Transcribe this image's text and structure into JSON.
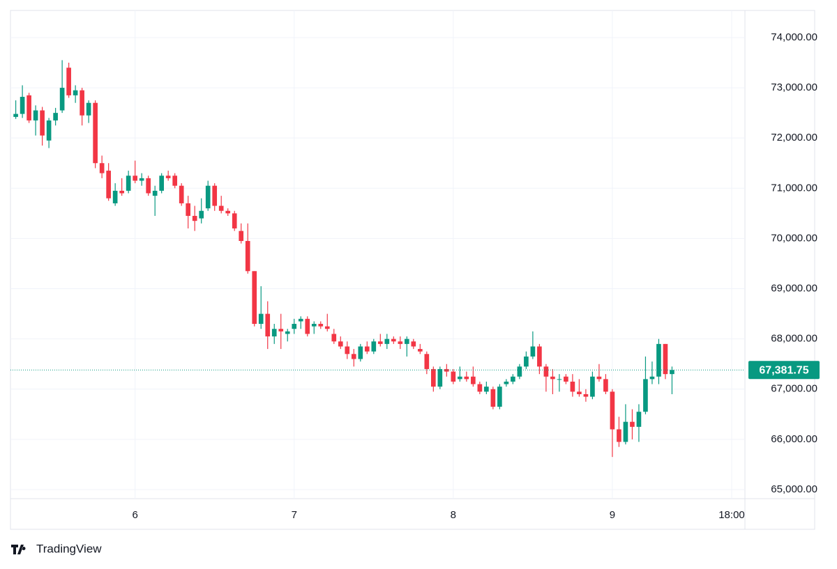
{
  "chart_data": {
    "type": "candlestick",
    "x": [
      6,
      7,
      8,
      9,
      10,
      11,
      12,
      13,
      14,
      15,
      16,
      17,
      18,
      19,
      20,
      21,
      22,
      23,
      24,
      25,
      26,
      27,
      28,
      29,
      30,
      31,
      32,
      33,
      34,
      35,
      36,
      37,
      38,
      39,
      40,
      41,
      42,
      43,
      44,
      45,
      46,
      47,
      48,
      49,
      50,
      51,
      52,
      53,
      54,
      55,
      56,
      57,
      58,
      59,
      60,
      61,
      62,
      63,
      64,
      65,
      66,
      67,
      68,
      69,
      70,
      71,
      72,
      73,
      74,
      75,
      76,
      77,
      78,
      79,
      80,
      81,
      82,
      83,
      84,
      85,
      86,
      87,
      88,
      89,
      90,
      91,
      92,
      93,
      94,
      95,
      96,
      97,
      98,
      99,
      100,
      101,
      102,
      103,
      104,
      105
    ],
    "open": [
      72420,
      72480,
      72850,
      72350,
      72550,
      71950,
      72350,
      72550,
      73400,
      72850,
      72950,
      72450,
      72700,
      71500,
      71350,
      70700,
      70950,
      70950,
      71250,
      71150,
      71200,
      70850,
      70950,
      71250,
      71250,
      71050,
      70700,
      70450,
      70400,
      70600,
      71050,
      70650,
      70550,
      70500,
      70150,
      69950,
      69350,
      68300,
      68500,
      68050,
      68200,
      68100,
      68200,
      68350,
      68400,
      68250,
      68300,
      68250,
      68100,
      67950,
      67850,
      67700,
      67600,
      67850,
      67750,
      67950,
      67900,
      68000,
      67950,
      67900,
      67950,
      67800,
      67700,
      67400,
      67050,
      67400,
      67350,
      67200,
      67250,
      67250,
      67100,
      66950,
      67000,
      66650,
      67100,
      67150,
      67250,
      67450,
      67650,
      67850,
      67450,
      67250,
      67200,
      67250,
      67150,
      66950,
      66900,
      66850,
      67250,
      67200,
      66950,
      66200,
      65950,
      66350,
      66250,
      66550,
      67200,
      67250,
      67900,
      67300
    ],
    "high": [
      72750,
      73050,
      72900,
      72650,
      72620,
      72400,
      72600,
      73550,
      73500,
      73050,
      73000,
      72750,
      72750,
      71650,
      71500,
      71100,
      71200,
      71350,
      71550,
      71300,
      71250,
      71050,
      71300,
      71350,
      71300,
      71100,
      70850,
      70650,
      70800,
      71150,
      71100,
      70850,
      70600,
      70550,
      70300,
      70300,
      69350,
      69050,
      68750,
      68300,
      68500,
      68200,
      68400,
      68450,
      68450,
      68350,
      68350,
      68500,
      68200,
      68050,
      67950,
      67800,
      67900,
      67950,
      68000,
      68100,
      68100,
      68050,
      68050,
      68050,
      68000,
      67900,
      67750,
      67450,
      67450,
      67500,
      67400,
      67450,
      67350,
      67450,
      67150,
      67150,
      67050,
      67100,
      67200,
      67300,
      67500,
      67750,
      68150,
      67900,
      67500,
      67400,
      67300,
      67300,
      67300,
      67200,
      67000,
      67350,
      67500,
      67300,
      67000,
      66450,
      66700,
      66600,
      66700,
      67650,
      67550,
      68000,
      67900,
      67450
    ],
    "low": [
      72380,
      72400,
      72300,
      72050,
      71850,
      71800,
      72250,
      72500,
      72800,
      72700,
      72250,
      72300,
      71400,
      71200,
      70750,
      70650,
      70850,
      70900,
      71100,
      71050,
      70850,
      70450,
      70900,
      71150,
      71000,
      70650,
      70200,
      70150,
      70300,
      70550,
      70550,
      70500,
      70450,
      70150,
      69900,
      69300,
      68250,
      68200,
      67800,
      67900,
      67800,
      67950,
      68100,
      68200,
      68050,
      68100,
      68200,
      68150,
      67900,
      67800,
      67600,
      67450,
      67550,
      67700,
      67700,
      67850,
      67800,
      67900,
      67800,
      67650,
      67800,
      67700,
      67300,
      66950,
      67000,
      67250,
      67100,
      67150,
      67150,
      67050,
      66900,
      66900,
      66600,
      66600,
      67050,
      67100,
      67200,
      67400,
      67600,
      67300,
      66950,
      66900,
      66950,
      67100,
      66850,
      66850,
      66750,
      66800,
      67150,
      66900,
      65650,
      65850,
      65900,
      66000,
      65950,
      66500,
      67100,
      67100,
      67200,
      66900
    ],
    "close": [
      72480,
      72820,
      72350,
      72550,
      72050,
      72350,
      72500,
      73000,
      72850,
      72950,
      72450,
      72700,
      71500,
      71300,
      70800,
      70950,
      70900,
      71250,
      71150,
      71200,
      70900,
      70950,
      71250,
      71200,
      71050,
      70700,
      70450,
      70350,
      70550,
      71050,
      70650,
      70550,
      70500,
      70200,
      69950,
      69350,
      68300,
      68500,
      68050,
      68200,
      68150,
      68150,
      68300,
      68400,
      68100,
      68300,
      68250,
      68200,
      67950,
      67850,
      67700,
      67600,
      67850,
      67750,
      67950,
      67900,
      68000,
      67950,
      67900,
      68000,
      67850,
      67750,
      67400,
      67050,
      67400,
      67350,
      67150,
      67250,
      67200,
      67100,
      66950,
      67050,
      66650,
      67050,
      67150,
      67250,
      67450,
      67650,
      67850,
      67450,
      67250,
      67200,
      67200,
      67150,
      66950,
      66900,
      66850,
      67250,
      67200,
      66950,
      66200,
      65950,
      66350,
      66250,
      66550,
      67200,
      67250,
      67900,
      67300,
      67381.75
    ],
    "up_color": "#089981",
    "down_color": "#f23645",
    "xlim": [
      5.2,
      116
    ],
    "xticks": [
      {
        "value": 24,
        "label": "6"
      },
      {
        "value": 48,
        "label": "7"
      },
      {
        "value": 72,
        "label": "8"
      },
      {
        "value": 96,
        "label": "9"
      },
      {
        "value": 114,
        "label": "18:00"
      }
    ],
    "ylim": [
      64820,
      74540
    ],
    "yticks": [
      {
        "value": 65000,
        "label": "65,000.00"
      },
      {
        "value": 66000,
        "label": "66,000.00"
      },
      {
        "value": 67000,
        "label": "67,000.00"
      },
      {
        "value": 68000,
        "label": "68,000.00"
      },
      {
        "value": 69000,
        "label": "69,000.00"
      },
      {
        "value": 70000,
        "label": "70,000.00"
      },
      {
        "value": 71000,
        "label": "71,000.00"
      },
      {
        "value": 72000,
        "label": "72,000.00"
      },
      {
        "value": 73000,
        "label": "73,000.00"
      },
      {
        "value": 74000,
        "label": "74,000.00"
      }
    ],
    "grid": true,
    "last_price": 67381.75,
    "last_price_label": "67,381.75"
  },
  "branding": "TradingView"
}
